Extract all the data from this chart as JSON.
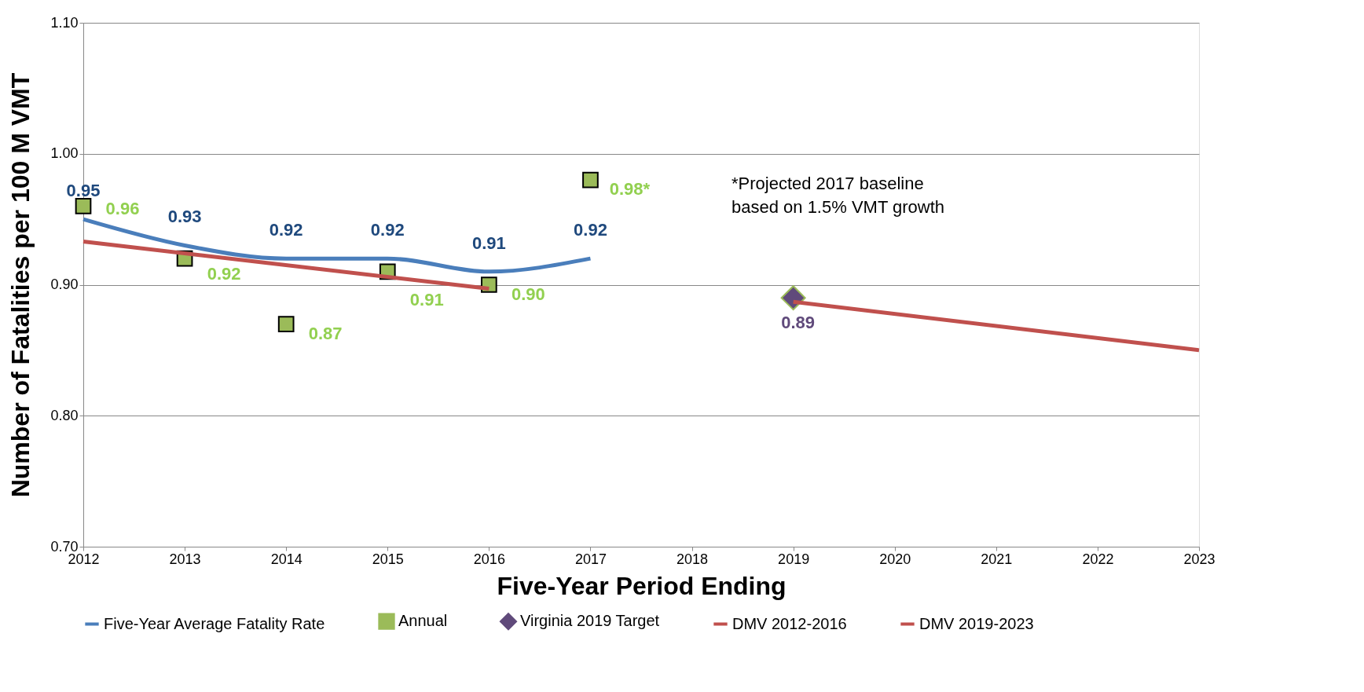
{
  "chart_data": {
    "type": "line",
    "xlabel": "Five-Year Period Ending",
    "ylabel": "Number of Fatalities per 100 M VMT",
    "xlim": [
      2012,
      2023
    ],
    "xticks": [
      2012,
      2013,
      2014,
      2015,
      2016,
      2017,
      2018,
      2019,
      2020,
      2021,
      2022,
      2023
    ],
    "ylim": [
      0.7,
      1.1
    ],
    "yticks": [
      {
        "value": 0.7,
        "label": "0.70"
      },
      {
        "value": 0.8,
        "label": "0.80"
      },
      {
        "value": 0.9,
        "label": "0.90"
      },
      {
        "value": 1.0,
        "label": "1.00"
      },
      {
        "value": 1.1,
        "label": "1.10"
      }
    ],
    "grid": "y",
    "legend": "bottom",
    "series": [
      {
        "name": "Five-Year Average Fatality Rate",
        "color": "#4a7ebb",
        "x": [
          2012,
          2013,
          2014,
          2015,
          2016,
          2017
        ],
        "values": [
          0.95,
          0.93,
          0.92,
          0.92,
          0.91,
          0.92
        ],
        "value_labels": [
          "0.95",
          "0.93",
          "0.92",
          "0.92",
          "0.91",
          "0.92"
        ]
      },
      {
        "name": "Annual",
        "type": "scatter",
        "marker": "square",
        "color": "#9bbb59",
        "x": [
          2012,
          2013,
          2014,
          2015,
          2016,
          2017
        ],
        "values": [
          0.96,
          0.92,
          0.87,
          0.91,
          0.9,
          0.98
        ],
        "value_labels": [
          "0.96",
          "0.92",
          "0.87",
          "0.91",
          "0.90",
          "0.98*"
        ]
      },
      {
        "name": "Virginia 2019 Target",
        "type": "scatter",
        "marker": "diamond",
        "color": "#604a7b",
        "x": [
          2019
        ],
        "values": [
          0.89
        ],
        "value_labels": [
          "0.89"
        ]
      },
      {
        "name": "DMV 2012-2016",
        "color": "#c0504d",
        "x": [
          2012,
          2016
        ],
        "values": [
          0.933,
          0.897
        ]
      },
      {
        "name": "DMV 2019-2023",
        "color": "#c0504d",
        "x": [
          2019,
          2023
        ],
        "values": [
          0.887,
          0.85
        ]
      }
    ],
    "annotations": [
      "*Projected 2017 baseline\nbased  on 1.5% VMT growth"
    ]
  }
}
